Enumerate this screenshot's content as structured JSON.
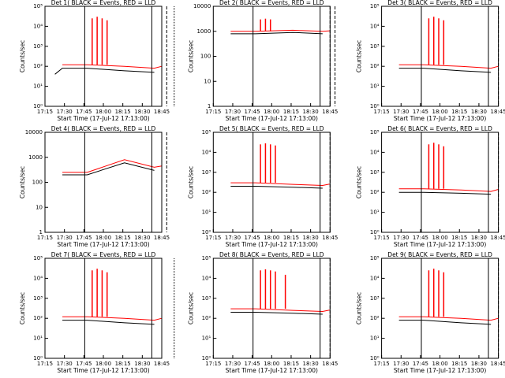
{
  "figure": {
    "xlabel": "Start Time (17-Jul-12 17:13:00)",
    "ylabel": "Counts/sec",
    "x_ticks": [
      "17:15",
      "17:30",
      "17:45",
      "18:00",
      "18:15",
      "18:30",
      "18:45"
    ],
    "colors": {
      "events": "#000000",
      "lld": "#ff0000"
    }
  },
  "chart_data": [
    {
      "type": "line",
      "title": "Det 1( BLACK = Events, RED = LLD",
      "scale": "log",
      "ylim": [
        1,
        100000
      ],
      "y_ticks": [
        "10⁰",
        "10¹",
        "10²",
        "10³",
        "10⁴",
        "10⁵"
      ],
      "xlim_minutes": [
        13,
        60
      ],
      "series": [
        {
          "name": "Events",
          "baseline": [
            [
              17,
              40
            ],
            [
              20,
              80
            ],
            [
              30,
              80
            ],
            [
              45,
              60
            ],
            [
              57,
              50
            ]
          ],
          "spikes": [],
          "gap": [
            57.5,
            60
          ]
        },
        {
          "name": "LLD",
          "baseline": [
            [
              20,
              120
            ],
            [
              30,
              120
            ],
            [
              45,
              100
            ],
            [
              57,
              80
            ],
            [
              60,
              100
            ]
          ],
          "spikes": [
            [
              32,
              25000
            ],
            [
              34,
              30000
            ],
            [
              36,
              25000
            ],
            [
              38,
              20000
            ]
          ],
          "gap": [
            57.5,
            60
          ]
        }
      ],
      "vlines_solid": [
        29,
        56
      ],
      "vlines_dashed": [
        60,
        62
      ],
      "vlines_dotted": [
        65
      ]
    },
    {
      "type": "line",
      "title": "Det 2( BLACK = Events, RED = LLD",
      "scale": "log",
      "ylim": [
        1,
        10000
      ],
      "y_ticks": [
        "1",
        "10",
        "100",
        "1000",
        "10000"
      ],
      "xlim_minutes": [
        13,
        60
      ],
      "series": [
        {
          "name": "Events",
          "baseline": [
            [
              20,
              800
            ],
            [
              30,
              800
            ],
            [
              45,
              900
            ],
            [
              57,
              800
            ]
          ],
          "spikes": [],
          "gap": [
            57.5,
            60
          ]
        },
        {
          "name": "LLD",
          "baseline": [
            [
              20,
              1000
            ],
            [
              30,
              1000
            ],
            [
              45,
              1100
            ],
            [
              57,
              1000
            ],
            [
              60,
              1050
            ]
          ],
          "spikes": [
            [
              32,
              3000
            ],
            [
              34,
              3200
            ],
            [
              36,
              3000
            ]
          ],
          "gap": [
            57.5,
            60
          ]
        }
      ],
      "vlines_solid": [
        29,
        56
      ],
      "vlines_dashed": [
        60,
        62
      ],
      "vlines_dotted": []
    },
    {
      "type": "line",
      "title": "Det 3( BLACK = Events, RED = LLD",
      "scale": "log",
      "ylim": [
        1,
        100000
      ],
      "y_ticks": [
        "10⁰",
        "10¹",
        "10²",
        "10³",
        "10⁴",
        "10⁵"
      ],
      "xlim_minutes": [
        13,
        60
      ],
      "series": [
        {
          "name": "Events",
          "baseline": [
            [
              20,
              80
            ],
            [
              30,
              80
            ],
            [
              45,
              60
            ],
            [
              57,
              50
            ]
          ],
          "spikes": [],
          "gap": [
            57.5,
            60
          ]
        },
        {
          "name": "LLD",
          "baseline": [
            [
              20,
              120
            ],
            [
              30,
              120
            ],
            [
              45,
              100
            ],
            [
              57,
              80
            ],
            [
              60,
              100
            ]
          ],
          "spikes": [
            [
              32,
              25000
            ],
            [
              34,
              30000
            ],
            [
              36,
              25000
            ],
            [
              38,
              20000
            ]
          ],
          "gap": [
            57.5,
            60
          ]
        }
      ],
      "vlines_solid": [
        29,
        56
      ],
      "vlines_dashed": [
        60
      ],
      "vlines_dotted": [
        65
      ]
    },
    {
      "type": "line",
      "title": "Det 4( BLACK = Events, RED = LLD",
      "scale": "log",
      "ylim": [
        1,
        10000
      ],
      "y_ticks": [
        "1",
        "10",
        "100",
        "1000",
        "10000"
      ],
      "xlim_minutes": [
        13,
        60
      ],
      "series": [
        {
          "name": "Events",
          "baseline": [
            [
              20,
              200
            ],
            [
              30,
              200
            ],
            [
              45,
              600
            ],
            [
              57,
              300
            ]
          ],
          "spikes": [],
          "gap": [
            57.5,
            60
          ]
        },
        {
          "name": "LLD",
          "baseline": [
            [
              20,
              250
            ],
            [
              30,
              250
            ],
            [
              45,
              800
            ],
            [
              57,
              400
            ],
            [
              60,
              450
            ]
          ],
          "spikes": [],
          "gap": [
            57.5,
            60
          ]
        }
      ],
      "vlines_solid": [
        29,
        56
      ],
      "vlines_dashed": [
        60,
        62
      ],
      "vlines_dotted": []
    },
    {
      "type": "line",
      "title": "Det 5( BLACK = Events, RED = LLD",
      "scale": "log",
      "ylim": [
        1,
        100000
      ],
      "y_ticks": [
        "10⁰",
        "10¹",
        "10²",
        "10³",
        "10⁴",
        "10⁵"
      ],
      "xlim_minutes": [
        13,
        60
      ],
      "series": [
        {
          "name": "Events",
          "baseline": [
            [
              20,
              200
            ],
            [
              30,
              200
            ],
            [
              45,
              180
            ],
            [
              57,
              160
            ]
          ],
          "spikes": [],
          "gap": [
            57.5,
            60
          ]
        },
        {
          "name": "LLD",
          "baseline": [
            [
              20,
              300
            ],
            [
              30,
              300
            ],
            [
              45,
              250
            ],
            [
              57,
              220
            ],
            [
              60,
              260
            ]
          ],
          "spikes": [
            [
              32,
              25000
            ],
            [
              34,
              28000
            ],
            [
              36,
              25000
            ],
            [
              38,
              22000
            ]
          ],
          "gap": [
            57.5,
            60
          ]
        }
      ],
      "vlines_solid": [
        29,
        56
      ],
      "vlines_dashed": [
        60
      ],
      "vlines_dotted": []
    },
    {
      "type": "line",
      "title": "Det 6( BLACK = Events, RED = LLD",
      "scale": "log",
      "ylim": [
        1,
        100000
      ],
      "y_ticks": [
        "10⁰",
        "10¹",
        "10²",
        "10³",
        "10⁴",
        "10⁵"
      ],
      "xlim_minutes": [
        13,
        60
      ],
      "series": [
        {
          "name": "Events",
          "baseline": [
            [
              20,
              100
            ],
            [
              30,
              100
            ],
            [
              45,
              90
            ],
            [
              57,
              80
            ]
          ],
          "spikes": [],
          "gap": [
            57.5,
            60
          ]
        },
        {
          "name": "LLD",
          "baseline": [
            [
              20,
              150
            ],
            [
              30,
              150
            ],
            [
              45,
              130
            ],
            [
              57,
              110
            ],
            [
              60,
              140
            ]
          ],
          "spikes": [
            [
              32,
              25000
            ],
            [
              34,
              30000
            ],
            [
              36,
              25000
            ],
            [
              38,
              20000
            ]
          ],
          "gap": [
            57.5,
            60
          ]
        }
      ],
      "vlines_solid": [
        29,
        56
      ],
      "vlines_dashed": [
        60
      ],
      "vlines_dotted": []
    },
    {
      "type": "line",
      "title": "Det 7( BLACK = Events, RED = LLD",
      "scale": "log",
      "ylim": [
        1,
        100000
      ],
      "y_ticks": [
        "10⁰",
        "10¹",
        "10²",
        "10³",
        "10⁴",
        "10⁵"
      ],
      "xlim_minutes": [
        13,
        60
      ],
      "series": [
        {
          "name": "Events",
          "baseline": [
            [
              20,
              80
            ],
            [
              30,
              80
            ],
            [
              45,
              60
            ],
            [
              57,
              50
            ]
          ],
          "spikes": [],
          "gap": [
            57.5,
            60
          ]
        },
        {
          "name": "LLD",
          "baseline": [
            [
              20,
              120
            ],
            [
              30,
              120
            ],
            [
              45,
              100
            ],
            [
              57,
              80
            ],
            [
              60,
              100
            ]
          ],
          "spikes": [
            [
              32,
              25000
            ],
            [
              34,
              30000
            ],
            [
              36,
              25000
            ],
            [
              38,
              20000
            ]
          ],
          "gap": [
            57.5,
            60
          ]
        }
      ],
      "vlines_solid": [
        29,
        56
      ],
      "vlines_dashed": [
        60
      ],
      "vlines_dotted": [
        65
      ]
    },
    {
      "type": "line",
      "title": "Det 8( BLACK = Events, RED = LLD",
      "scale": "log",
      "ylim": [
        1,
        100000
      ],
      "y_ticks": [
        "10⁰",
        "10¹",
        "10²",
        "10³",
        "10⁴",
        "10⁵"
      ],
      "xlim_minutes": [
        13,
        60
      ],
      "series": [
        {
          "name": "Events",
          "baseline": [
            [
              20,
              200
            ],
            [
              30,
              200
            ],
            [
              45,
              180
            ],
            [
              57,
              160
            ]
          ],
          "spikes": [],
          "gap": [
            57.5,
            60
          ]
        },
        {
          "name": "LLD",
          "baseline": [
            [
              20,
              300
            ],
            [
              30,
              300
            ],
            [
              45,
              250
            ],
            [
              57,
              220
            ],
            [
              60,
              260
            ]
          ],
          "spikes": [
            [
              32,
              25000
            ],
            [
              34,
              28000
            ],
            [
              36,
              25000
            ],
            [
              38,
              22000
            ],
            [
              42,
              15000
            ]
          ],
          "gap": [
            57.5,
            60
          ]
        }
      ],
      "vlines_solid": [
        29,
        56
      ],
      "vlines_dashed": [
        60
      ],
      "vlines_dotted": []
    },
    {
      "type": "line",
      "title": "Det 9( BLACK = Events, RED = LLD",
      "scale": "log",
      "ylim": [
        1,
        100000
      ],
      "y_ticks": [
        "10⁰",
        "10¹",
        "10²",
        "10³",
        "10⁴",
        "10⁵"
      ],
      "xlim_minutes": [
        13,
        60
      ],
      "series": [
        {
          "name": "Events",
          "baseline": [
            [
              20,
              80
            ],
            [
              30,
              80
            ],
            [
              45,
              60
            ],
            [
              57,
              50
            ]
          ],
          "spikes": [],
          "gap": [
            57.5,
            60
          ]
        },
        {
          "name": "LLD",
          "baseline": [
            [
              20,
              120
            ],
            [
              30,
              120
            ],
            [
              45,
              100
            ],
            [
              57,
              80
            ],
            [
              60,
              100
            ]
          ],
          "spikes": [
            [
              32,
              25000
            ],
            [
              34,
              30000
            ],
            [
              36,
              25000
            ],
            [
              38,
              20000
            ]
          ],
          "gap": [
            57.5,
            60
          ]
        }
      ],
      "vlines_solid": [
        29,
        56
      ],
      "vlines_dashed": [
        60
      ],
      "vlines_dotted": [
        65
      ]
    }
  ]
}
